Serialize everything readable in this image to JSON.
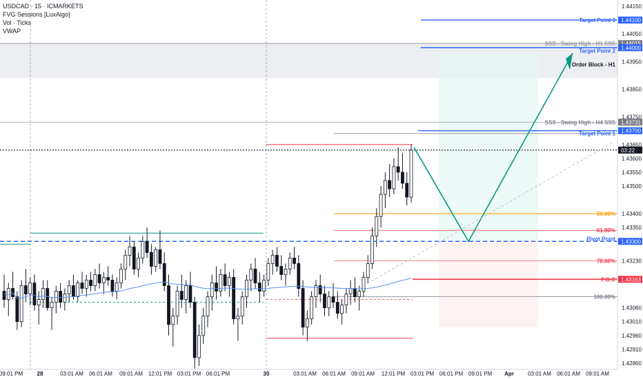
{
  "legend": {
    "symbol": "USDCAD · 15 · ICMARKETS",
    "indicators": [
      "FVG Sessions [LuxAlgo]",
      "Vol · Ticks",
      "VWAP"
    ]
  },
  "colors": {
    "up": "#ffffff",
    "down": "#131722",
    "grid": "#9598a1",
    "blue": "#2962ff",
    "green": "#089981",
    "red": "#f23645",
    "orange": "#ff9800",
    "vwap": "#5b8def"
  },
  "chart_data": {
    "type": "candlestick",
    "price_range": [
      1.4284,
      1.4417
    ],
    "price_ticks": [
      1.4415,
      1.441,
      1.44,
      1.4395,
      1.4385,
      1.4375,
      1.437,
      1.4365,
      1.436,
      1.4355,
      1.435,
      1.4345,
      1.434,
      1.4335,
      1.433,
      1.4325,
      1.432,
      1.4315,
      1.431,
      1.4305,
      1.43,
      1.4295,
      1.429,
      1.4285
    ],
    "price_tick_labels": [
      "1.44150",
      "1.44100",
      "1.44000",
      "1.43950",
      "1.43850",
      "1.43750",
      "1.43700",
      "1.43650",
      "1.43600",
      "1.43550",
      "1.43500",
      "1.43400",
      "1.43350",
      "1.43300",
      "1.43230",
      "1.43163",
      "1.43060",
      "1.43010",
      "1.42960",
      "1.42910",
      "1.42860",
      "1.43731",
      "1.44050"
    ],
    "time_labels": [
      "09:01 PM",
      "28",
      "03:01 AM",
      "06:01 AM",
      "09:01 AM",
      "12:01 PM",
      "03:01 PM",
      "06:01 PM",
      "30",
      "03:01 AM",
      "06:01 AM",
      "09:01 AM",
      "12:01 PM",
      "03:01 PM",
      "06:01 PM",
      "09:01 PM",
      "Apr",
      "03:01 AM",
      "06:01 AM",
      "09:01 AM"
    ],
    "level_labels": {
      "target3": "Target Point 3",
      "target3_price": "1.44100",
      "target2": "Target Point 2",
      "target2_price": "1.44000",
      "sss_h1": "SSS - Swing High - H1 SSS",
      "sss_h1_price": "1.44015",
      "order_block": "Order Block - H1",
      "sss_h4": "SSS - Swing High - H4 SSS",
      "sss_h4_price": "1.43731",
      "target1": "Target Point 1",
      "target1_price": "1.43700",
      "current_price": "03:22",
      "fib50": "50.00%",
      "fib618": "61.80%",
      "fib786": "78.60%",
      "fib100": "100.00%",
      "pivot": "Pivot Point",
      "pivot_price": "1.43300",
      "poc": "P.O.C",
      "poc_price": "1.43163"
    },
    "candles": [
      [
        1.4312,
        1.4318,
        1.4306,
        1.4309
      ],
      [
        1.4309,
        1.4315,
        1.4303,
        1.4313
      ],
      [
        1.4313,
        1.4319,
        1.4309,
        1.431
      ],
      [
        1.431,
        1.4312,
        1.4298,
        1.4301
      ],
      [
        1.4301,
        1.4316,
        1.4299,
        1.4314
      ],
      [
        1.4314,
        1.432,
        1.4308,
        1.4311
      ],
      [
        1.4311,
        1.4317,
        1.4307,
        1.4315
      ],
      [
        1.4315,
        1.4318,
        1.4305,
        1.4307
      ],
      [
        1.4307,
        1.4312,
        1.43,
        1.4309
      ],
      [
        1.4309,
        1.4316,
        1.4306,
        1.4313
      ],
      [
        1.4313,
        1.4316,
        1.4305,
        1.4306
      ],
      [
        1.4306,
        1.431,
        1.4298,
        1.4308
      ],
      [
        1.4308,
        1.4314,
        1.4304,
        1.4312
      ],
      [
        1.4312,
        1.4315,
        1.4306,
        1.4308
      ],
      [
        1.4308,
        1.4313,
        1.4305,
        1.4311
      ],
      [
        1.4311,
        1.4316,
        1.4308,
        1.4314
      ],
      [
        1.4314,
        1.4318,
        1.4309,
        1.431
      ],
      [
        1.431,
        1.4316,
        1.4308,
        1.4315
      ],
      [
        1.4315,
        1.4319,
        1.4311,
        1.4313
      ],
      [
        1.4313,
        1.4318,
        1.431,
        1.4316
      ],
      [
        1.4316,
        1.4319,
        1.4312,
        1.4314
      ],
      [
        1.4314,
        1.432,
        1.4312,
        1.4318
      ],
      [
        1.4318,
        1.4322,
        1.4313,
        1.4315
      ],
      [
        1.4315,
        1.4319,
        1.4311,
        1.4317
      ],
      [
        1.4317,
        1.4321,
        1.4314,
        1.4316
      ],
      [
        1.4316,
        1.4318,
        1.431,
        1.4312
      ],
      [
        1.4312,
        1.4317,
        1.4309,
        1.4315
      ],
      [
        1.4315,
        1.4322,
        1.4313,
        1.432
      ],
      [
        1.432,
        1.4327,
        1.4316,
        1.4325
      ],
      [
        1.4325,
        1.4332,
        1.4321,
        1.4328
      ],
      [
        1.4328,
        1.433,
        1.4318,
        1.432
      ],
      [
        1.432,
        1.4326,
        1.4317,
        1.4324
      ],
      [
        1.4324,
        1.4332,
        1.4322,
        1.433
      ],
      [
        1.433,
        1.4335,
        1.4324,
        1.4326
      ],
      [
        1.4326,
        1.4329,
        1.4318,
        1.4321
      ],
      [
        1.4321,
        1.4328,
        1.4319,
        1.4327
      ],
      [
        1.4327,
        1.4334,
        1.432,
        1.4322
      ],
      [
        1.4322,
        1.4326,
        1.4312,
        1.4314
      ],
      [
        1.4314,
        1.4318,
        1.4296,
        1.43
      ],
      [
        1.43,
        1.4306,
        1.4292,
        1.4303
      ],
      [
        1.4303,
        1.4314,
        1.43,
        1.4312
      ],
      [
        1.4312,
        1.4318,
        1.4306,
        1.4309
      ],
      [
        1.4309,
        1.4316,
        1.4304,
        1.4314
      ],
      [
        1.4314,
        1.4319,
        1.4306,
        1.4308
      ],
      [
        1.4308,
        1.431,
        1.4284,
        1.4288
      ],
      [
        1.4288,
        1.43,
        1.4285,
        1.4296
      ],
      [
        1.4296,
        1.4306,
        1.4293,
        1.4303
      ],
      [
        1.4303,
        1.4312,
        1.4299,
        1.431
      ],
      [
        1.431,
        1.4318,
        1.4305,
        1.4315
      ],
      [
        1.4315,
        1.4321,
        1.4309,
        1.4312
      ],
      [
        1.4312,
        1.432,
        1.431,
        1.4318
      ],
      [
        1.4318,
        1.4322,
        1.4312,
        1.4314
      ],
      [
        1.4314,
        1.4319,
        1.431,
        1.4317
      ],
      [
        1.4317,
        1.432,
        1.43,
        1.4302
      ],
      [
        1.4302,
        1.4306,
        1.4294,
        1.4303
      ],
      [
        1.4303,
        1.4312,
        1.43,
        1.431
      ],
      [
        1.431,
        1.4318,
        1.4306,
        1.4316
      ],
      [
        1.4316,
        1.4322,
        1.4312,
        1.432
      ],
      [
        1.432,
        1.4324,
        1.4313,
        1.4315
      ],
      [
        1.4315,
        1.4319,
        1.4308,
        1.4312
      ],
      [
        1.4312,
        1.4318,
        1.431,
        1.4316
      ],
      [
        1.4316,
        1.4324,
        1.4314,
        1.4322
      ],
      [
        1.4322,
        1.4327,
        1.4318,
        1.4325
      ],
      [
        1.4325,
        1.4328,
        1.4319,
        1.4321
      ],
      [
        1.4321,
        1.4325,
        1.4316,
        1.4318
      ],
      [
        1.4318,
        1.4322,
        1.4314,
        1.432
      ],
      [
        1.432,
        1.4326,
        1.4318,
        1.4324
      ],
      [
        1.4324,
        1.4328,
        1.432,
        1.4322
      ],
      [
        1.4322,
        1.4325,
        1.431,
        1.4313
      ],
      [
        1.4313,
        1.4316,
        1.4296,
        1.4299
      ],
      [
        1.4299,
        1.4305,
        1.4294,
        1.4302
      ],
      [
        1.4302,
        1.4312,
        1.43,
        1.431
      ],
      [
        1.431,
        1.4316,
        1.4306,
        1.4314
      ],
      [
        1.4314,
        1.4318,
        1.4308,
        1.4311
      ],
      [
        1.4311,
        1.4314,
        1.4303,
        1.4306
      ],
      [
        1.4306,
        1.4312,
        1.4303,
        1.431
      ],
      [
        1.431,
        1.4315,
        1.4306,
        1.4308
      ],
      [
        1.4308,
        1.4312,
        1.4302,
        1.4304
      ],
      [
        1.4304,
        1.4309,
        1.43,
        1.4307
      ],
      [
        1.4307,
        1.4313,
        1.4304,
        1.4311
      ],
      [
        1.4311,
        1.4316,
        1.4307,
        1.4313
      ],
      [
        1.4313,
        1.4317,
        1.4308,
        1.431
      ],
      [
        1.431,
        1.4314,
        1.4305,
        1.4312
      ],
      [
        1.4312,
        1.4319,
        1.431,
        1.4317
      ],
      [
        1.4317,
        1.4325,
        1.4315,
        1.4322
      ],
      [
        1.4322,
        1.4335,
        1.432,
        1.4332
      ],
      [
        1.4332,
        1.4342,
        1.4328,
        1.4339
      ],
      [
        1.4339,
        1.435,
        1.4335,
        1.4347
      ],
      [
        1.4347,
        1.4355,
        1.4342,
        1.4352
      ],
      [
        1.4352,
        1.4358,
        1.4346,
        1.4349
      ],
      [
        1.4349,
        1.436,
        1.4347,
        1.4357
      ],
      [
        1.4357,
        1.4364,
        1.4352,
        1.4355
      ],
      [
        1.4355,
        1.4362,
        1.4349,
        1.4351
      ],
      [
        1.4351,
        1.4355,
        1.4343,
        1.4346
      ],
      [
        1.4346,
        1.4365,
        1.4344,
        1.4363
      ]
    ]
  }
}
